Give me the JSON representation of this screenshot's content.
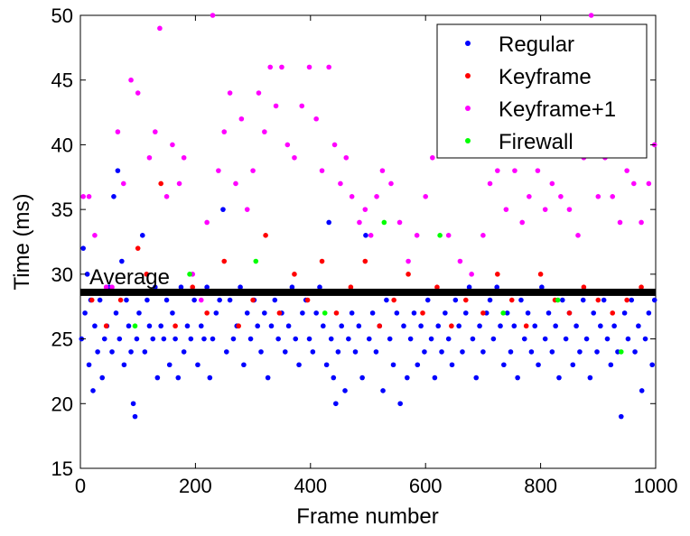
{
  "chart_data": {
    "type": "scatter",
    "xlabel": "Frame number",
    "ylabel": "Time (ms)",
    "xlim": [
      0,
      1000
    ],
    "ylim": [
      15,
      50
    ],
    "xticks": [
      0,
      200,
      400,
      600,
      800,
      1000
    ],
    "yticks": [
      15,
      20,
      25,
      30,
      35,
      40,
      45,
      50
    ],
    "grid": false,
    "legend_position": "top-right",
    "average": {
      "label": "Average",
      "value": 28.6,
      "color": "#000000"
    },
    "series": [
      {
        "name": "Regular",
        "color": "#0000ff",
        "points": [
          [
            2,
            25
          ],
          [
            5,
            32
          ],
          [
            8,
            27
          ],
          [
            12,
            30
          ],
          [
            15,
            23
          ],
          [
            18,
            28
          ],
          [
            22,
            21
          ],
          [
            25,
            26
          ],
          [
            30,
            24
          ],
          [
            34,
            28
          ],
          [
            38,
            22
          ],
          [
            42,
            25
          ],
          [
            46,
            26
          ],
          [
            50,
            29
          ],
          [
            55,
            24
          ],
          [
            58,
            36
          ],
          [
            62,
            27
          ],
          [
            65,
            38
          ],
          [
            68,
            25
          ],
          [
            72,
            31
          ],
          [
            76,
            23
          ],
          [
            80,
            28
          ],
          [
            84,
            26
          ],
          [
            88,
            24
          ],
          [
            92,
            20
          ],
          [
            95,
            19
          ],
          [
            98,
            25
          ],
          [
            102,
            27
          ],
          [
            108,
            33
          ],
          [
            112,
            24
          ],
          [
            116,
            28
          ],
          [
            120,
            26
          ],
          [
            126,
            25
          ],
          [
            130,
            29
          ],
          [
            134,
            22
          ],
          [
            140,
            26
          ],
          [
            145,
            25
          ],
          [
            150,
            28
          ],
          [
            155,
            23
          ],
          [
            160,
            27
          ],
          [
            165,
            25
          ],
          [
            170,
            22
          ],
          [
            175,
            29
          ],
          [
            180,
            24
          ],
          [
            186,
            26
          ],
          [
            192,
            25
          ],
          [
            198,
            28
          ],
          [
            204,
            23
          ],
          [
            210,
            26
          ],
          [
            215,
            25
          ],
          [
            220,
            29
          ],
          [
            225,
            22
          ],
          [
            230,
            25
          ],
          [
            236,
            27
          ],
          [
            242,
            28
          ],
          [
            248,
            35
          ],
          [
            254,
            24
          ],
          [
            260,
            28
          ],
          [
            266,
            25
          ],
          [
            272,
            26
          ],
          [
            278,
            29
          ],
          [
            284,
            23
          ],
          [
            290,
            27
          ],
          [
            296,
            25
          ],
          [
            302,
            28
          ],
          [
            308,
            26
          ],
          [
            314,
            24
          ],
          [
            320,
            27
          ],
          [
            326,
            22
          ],
          [
            332,
            26
          ],
          [
            338,
            28
          ],
          [
            344,
            25
          ],
          [
            350,
            27
          ],
          [
            356,
            24
          ],
          [
            362,
            26
          ],
          [
            368,
            29
          ],
          [
            374,
            25
          ],
          [
            380,
            23
          ],
          [
            386,
            27
          ],
          [
            392,
            28
          ],
          [
            398,
            25
          ],
          [
            404,
            24
          ],
          [
            410,
            27
          ],
          [
            416,
            29
          ],
          [
            422,
            26
          ],
          [
            428,
            23
          ],
          [
            432,
            34
          ],
          [
            436,
            25
          ],
          [
            440,
            22
          ],
          [
            444,
            20
          ],
          [
            448,
            24
          ],
          [
            454,
            26
          ],
          [
            460,
            21
          ],
          [
            466,
            25
          ],
          [
            472,
            27
          ],
          [
            478,
            24
          ],
          [
            484,
            26
          ],
          [
            490,
            22
          ],
          [
            496,
            33
          ],
          [
            502,
            25
          ],
          [
            508,
            27
          ],
          [
            514,
            24
          ],
          [
            520,
            26
          ],
          [
            526,
            21
          ],
          [
            532,
            28
          ],
          [
            538,
            25
          ],
          [
            544,
            23
          ],
          [
            550,
            27
          ],
          [
            556,
            20
          ],
          [
            562,
            26
          ],
          [
            568,
            22
          ],
          [
            574,
            25
          ],
          [
            580,
            27
          ],
          [
            586,
            23
          ],
          [
            592,
            26
          ],
          [
            598,
            24
          ],
          [
            604,
            28
          ],
          [
            610,
            25
          ],
          [
            616,
            22
          ],
          [
            622,
            26
          ],
          [
            628,
            24
          ],
          [
            634,
            27
          ],
          [
            640,
            25
          ],
          [
            646,
            23
          ],
          [
            652,
            28
          ],
          [
            658,
            26
          ],
          [
            664,
            24
          ],
          [
            670,
            27
          ],
          [
            676,
            29
          ],
          [
            682,
            25
          ],
          [
            688,
            22
          ],
          [
            694,
            26
          ],
          [
            700,
            24
          ],
          [
            706,
            27
          ],
          [
            712,
            28
          ],
          [
            718,
            25
          ],
          [
            724,
            29
          ],
          [
            730,
            26
          ],
          [
            736,
            23
          ],
          [
            742,
            27
          ],
          [
            748,
            24
          ],
          [
            754,
            26
          ],
          [
            760,
            22
          ],
          [
            766,
            28
          ],
          [
            772,
            25
          ],
          [
            778,
            27
          ],
          [
            784,
            24
          ],
          [
            790,
            26
          ],
          [
            796,
            23
          ],
          [
            802,
            29
          ],
          [
            808,
            25
          ],
          [
            814,
            27
          ],
          [
            820,
            24
          ],
          [
            826,
            26
          ],
          [
            832,
            22
          ],
          [
            838,
            28
          ],
          [
            844,
            25
          ],
          [
            850,
            27
          ],
          [
            856,
            23
          ],
          [
            862,
            26
          ],
          [
            868,
            24
          ],
          [
            874,
            28
          ],
          [
            880,
            25
          ],
          [
            886,
            22
          ],
          [
            892,
            27
          ],
          [
            898,
            24
          ],
          [
            904,
            26
          ],
          [
            910,
            28
          ],
          [
            916,
            25
          ],
          [
            922,
            23
          ],
          [
            928,
            26
          ],
          [
            934,
            24
          ],
          [
            940,
            19
          ],
          [
            946,
            27
          ],
          [
            952,
            25
          ],
          [
            958,
            28
          ],
          [
            964,
            24
          ],
          [
            970,
            26
          ],
          [
            976,
            21
          ],
          [
            982,
            25
          ],
          [
            988,
            27
          ],
          [
            994,
            23
          ],
          [
            998,
            28
          ]
        ]
      },
      {
        "name": "Keyframe",
        "color": "#ff0000",
        "points": [
          [
            20,
            28
          ],
          [
            45,
            26
          ],
          [
            70,
            28
          ],
          [
            100,
            32
          ],
          [
            115,
            30
          ],
          [
            140,
            37
          ],
          [
            165,
            26
          ],
          [
            195,
            29
          ],
          [
            220,
            27
          ],
          [
            250,
            31
          ],
          [
            275,
            26
          ],
          [
            300,
            28
          ],
          [
            322,
            33
          ],
          [
            346,
            27
          ],
          [
            372,
            30
          ],
          [
            395,
            28
          ],
          [
            420,
            31
          ],
          [
            445,
            27
          ],
          [
            470,
            29
          ],
          [
            495,
            31
          ],
          [
            520,
            26
          ],
          [
            545,
            28
          ],
          [
            570,
            30
          ],
          [
            595,
            27
          ],
          [
            620,
            29
          ],
          [
            645,
            26
          ],
          [
            670,
            28
          ],
          [
            700,
            27
          ],
          [
            725,
            30
          ],
          [
            750,
            28
          ],
          [
            775,
            26
          ],
          [
            800,
            30
          ],
          [
            825,
            28
          ],
          [
            850,
            27
          ],
          [
            875,
            29
          ],
          [
            900,
            28
          ],
          [
            925,
            27
          ],
          [
            950,
            28
          ],
          [
            975,
            29
          ]
        ]
      },
      {
        "name": "Keyframe+1",
        "color": "#ff00ff",
        "points": [
          [
            5,
            36
          ],
          [
            15,
            36
          ],
          [
            25,
            33
          ],
          [
            45,
            29
          ],
          [
            55,
            29
          ],
          [
            65,
            41
          ],
          [
            75,
            37
          ],
          [
            88,
            45
          ],
          [
            100,
            44
          ],
          [
            120,
            39
          ],
          [
            130,
            41
          ],
          [
            138,
            49
          ],
          [
            150,
            36
          ],
          [
            160,
            40
          ],
          [
            172,
            37
          ],
          [
            180,
            39
          ],
          [
            195,
            30
          ],
          [
            210,
            28
          ],
          [
            220,
            34
          ],
          [
            230,
            50
          ],
          [
            240,
            38
          ],
          [
            250,
            41
          ],
          [
            260,
            44
          ],
          [
            270,
            37
          ],
          [
            280,
            42
          ],
          [
            290,
            35
          ],
          [
            300,
            38
          ],
          [
            310,
            44
          ],
          [
            320,
            41
          ],
          [
            330,
            46
          ],
          [
            340,
            43
          ],
          [
            350,
            46
          ],
          [
            360,
            40
          ],
          [
            372,
            39
          ],
          [
            385,
            43
          ],
          [
            398,
            46
          ],
          [
            410,
            42
          ],
          [
            420,
            38
          ],
          [
            432,
            46
          ],
          [
            442,
            40
          ],
          [
            452,
            37
          ],
          [
            462,
            39
          ],
          [
            472,
            36
          ],
          [
            485,
            34
          ],
          [
            495,
            35
          ],
          [
            505,
            33
          ],
          [
            515,
            36
          ],
          [
            525,
            38
          ],
          [
            540,
            37
          ],
          [
            555,
            34
          ],
          [
            570,
            31
          ],
          [
            585,
            33
          ],
          [
            600,
            36
          ],
          [
            612,
            39
          ],
          [
            625,
            42
          ],
          [
            640,
            33
          ],
          [
            660,
            31
          ],
          [
            680,
            30
          ],
          [
            700,
            33
          ],
          [
            712,
            37
          ],
          [
            725,
            38
          ],
          [
            740,
            35
          ],
          [
            755,
            38
          ],
          [
            768,
            34
          ],
          [
            780,
            36
          ],
          [
            795,
            38
          ],
          [
            808,
            35
          ],
          [
            820,
            37
          ],
          [
            835,
            36
          ],
          [
            850,
            35
          ],
          [
            865,
            33
          ],
          [
            875,
            39
          ],
          [
            888,
            50
          ],
          [
            900,
            36
          ],
          [
            912,
            39
          ],
          [
            925,
            36
          ],
          [
            938,
            34
          ],
          [
            950,
            38
          ],
          [
            962,
            37
          ],
          [
            975,
            34
          ],
          [
            988,
            37
          ],
          [
            998,
            40
          ]
        ]
      },
      {
        "name": "Firewall",
        "color": "#00ff00",
        "points": [
          [
            95,
            26
          ],
          [
            190,
            30
          ],
          [
            305,
            31
          ],
          [
            425,
            27
          ],
          [
            528,
            34
          ],
          [
            625,
            33
          ],
          [
            735,
            27
          ],
          [
            830,
            28
          ],
          [
            940,
            24
          ]
        ]
      }
    ]
  }
}
